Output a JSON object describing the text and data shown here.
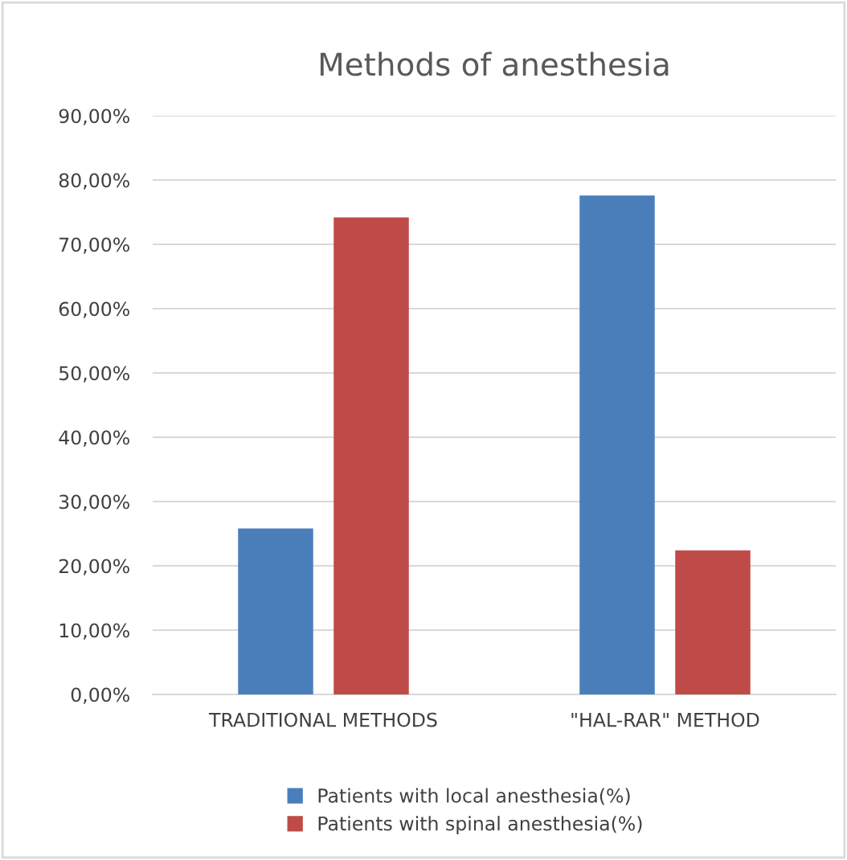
{
  "chart_data": {
    "type": "bar",
    "title": "Methods of anesthesia",
    "categories": [
      "TRADITIONAL METHODS",
      "\"HAL-RAR\" METHOD"
    ],
    "series": [
      {
        "name": "Patients with local anesthesia(%)",
        "color": "#4a7ebb",
        "values": [
          25.8,
          77.6
        ]
      },
      {
        "name": "Patients with spinal anesthesia(%)",
        "color": "#be4b48",
        "values": [
          74.2,
          22.4
        ]
      }
    ],
    "ylim": [
      0,
      90
    ],
    "yticks": [
      {
        "value": 0,
        "label": "0,00%"
      },
      {
        "value": 10,
        "label": "10,00%"
      },
      {
        "value": 20,
        "label": "20,00%"
      },
      {
        "value": 30,
        "label": "30,00%"
      },
      {
        "value": 40,
        "label": "40,00%"
      },
      {
        "value": 50,
        "label": "50,00%"
      },
      {
        "value": 60,
        "label": "60,00%"
      },
      {
        "value": 70,
        "label": "70,00%"
      },
      {
        "value": 80,
        "label": "80,00%"
      },
      {
        "value": 90,
        "label": "90,00%"
      }
    ],
    "grid": "y",
    "legend": "bottom"
  }
}
